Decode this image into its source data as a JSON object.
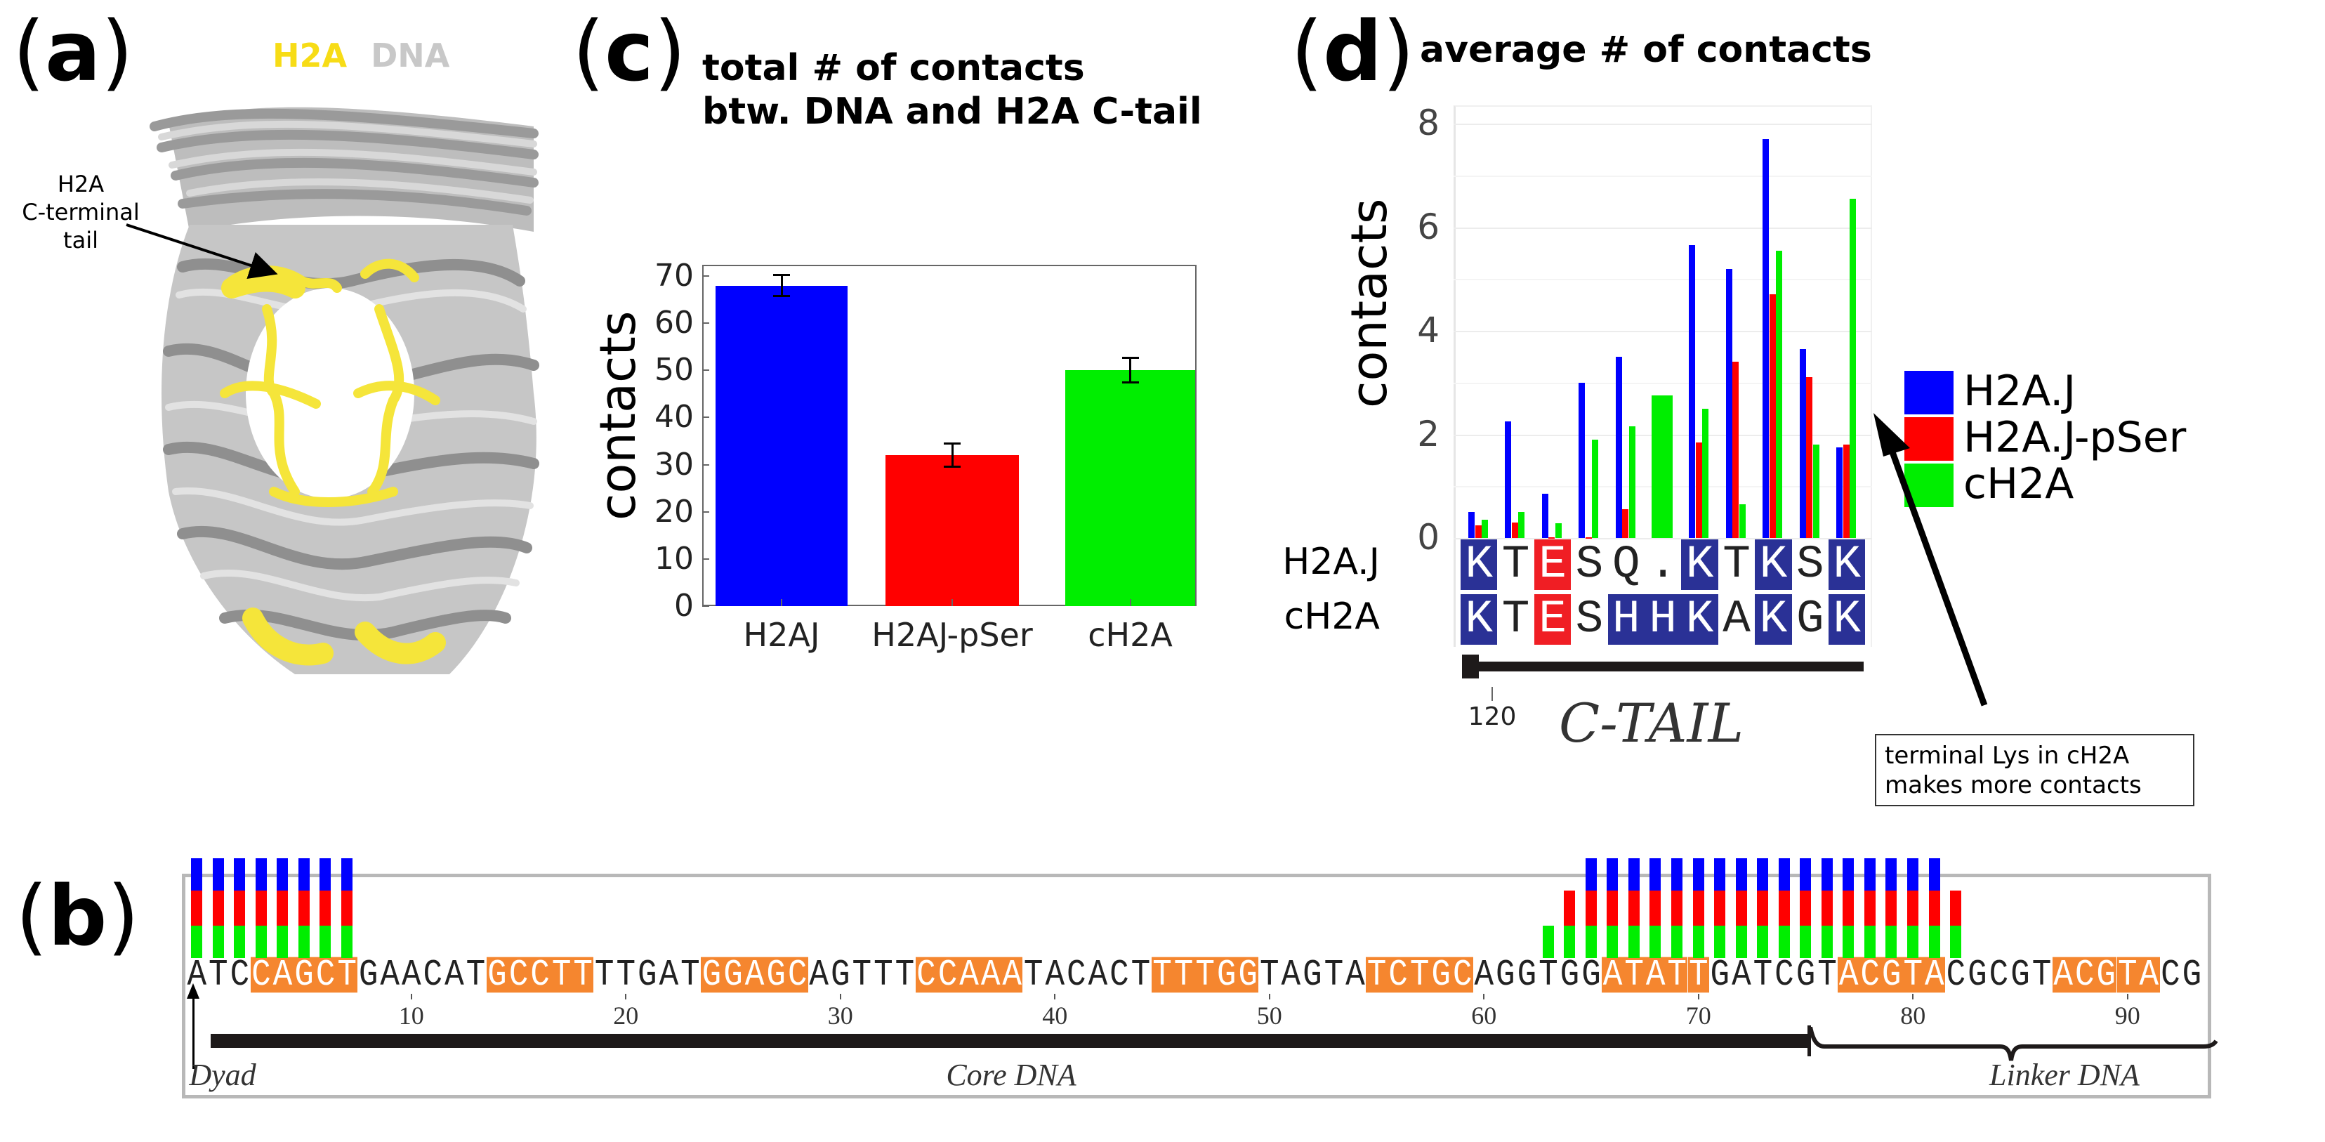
{
  "panel_labels": {
    "a": "a",
    "b": "b",
    "c": "c",
    "d": "d"
  },
  "panel_a": {
    "legend_h2a": "H2A",
    "legend_dna": "DNA",
    "tail_label_line1": "H2A",
    "tail_label_line2": "C-terminal",
    "tail_label_line3": "tail",
    "colors": {
      "h2a": "#f5e53a",
      "dna": "#b5b5b5"
    }
  },
  "chart_data": [
    {
      "id": "c",
      "type": "bar",
      "title_line1": "total # of contacts",
      "title_line2": "btw. DNA and H2A C-tail",
      "ylabel": "contacts",
      "xlabel": "",
      "categories": [
        "H2AJ",
        "H2AJ-pSer",
        "cH2A"
      ],
      "values": [
        68,
        32,
        50
      ],
      "errors": [
        2.3,
        2.5,
        2.6
      ],
      "colors": [
        "#0000ff",
        "#ff0000",
        "#00ee00"
      ],
      "ylim": [
        0,
        72.4
      ],
      "yticks": [
        "0",
        "10",
        "20",
        "30",
        "40",
        "50",
        "60",
        "70"
      ]
    },
    {
      "id": "d",
      "type": "bar",
      "title": "average # of contacts",
      "ylabel": "contacts",
      "ylim": [
        0,
        8.2
      ],
      "yticks": [
        "0",
        "2",
        "4",
        "6",
        "8"
      ],
      "series": [
        {
          "name": "H2A.J",
          "color": "#0000ff",
          "values": [
            0.5,
            2.25,
            0.85,
            3.0,
            3.5,
            0,
            5.65,
            5.2,
            7.7,
            3.65,
            1.75
          ]
        },
        {
          "name": "H2A.J-pSer",
          "color": "#ff0000",
          "values": [
            0.25,
            0.3,
            0.02,
            0.02,
            0.55,
            0,
            1.85,
            3.4,
            4.7,
            3.1,
            1.8
          ]
        },
        {
          "name": "cH2A",
          "color": "#00ee00",
          "values": [
            0.35,
            0.5,
            0.28,
            1.9,
            2.15,
            2.75,
            2.5,
            0.65,
            5.55,
            1.8,
            6.55
          ]
        }
      ],
      "alignment": {
        "rows": [
          {
            "name": "H2A.J",
            "residues": [
              "K",
              "T",
              "E",
              "S",
              "Q",
              ".",
              "K",
              "T",
              "K",
              "S",
              "K"
            ],
            "highlight": [
              "b",
              "",
              "r",
              "",
              "",
              "",
              "b",
              "",
              "b",
              "",
              "b"
            ]
          },
          {
            "name": "cH2A",
            "residues": [
              "K",
              "T",
              "E",
              "S",
              "H",
              "H",
              "K",
              "A",
              "K",
              "G",
              "K"
            ],
            "highlight": [
              "b",
              "",
              "r",
              "",
              "b",
              "b",
              "b",
              "",
              "b",
              "",
              "b"
            ]
          }
        ],
        "position_tick": "120",
        "domain_label": "C-TAIL"
      },
      "legend_placement": "right",
      "annotation": {
        "line1": "terminal Lys in cH2A",
        "line2": "makes more contacts"
      }
    },
    {
      "id": "b",
      "type": "table",
      "sequence": "ATCCAGCTGAACATGCCTTTTGATGGAGCAGTTTCCAAATACACTTTTGGTAGTATCTGCAGGTGGATATTGATCGTACGTACGCGTACGTACG",
      "highlight_ranges": [
        [
          3,
          7
        ],
        [
          14,
          18
        ],
        [
          24,
          28
        ],
        [
          34,
          38
        ],
        [
          45,
          49
        ],
        [
          55,
          59
        ],
        [
          66,
          70
        ],
        [
          77,
          81
        ],
        [
          87,
          91
        ]
      ],
      "position_ticks": [
        "10",
        "20",
        "30",
        "40",
        "50",
        "60",
        "70",
        "80",
        "90"
      ],
      "contacts": {
        "H2A.J": [
          [
            0,
            7
          ],
          [
            65,
            81
          ]
        ],
        "H2A.J-pSer": [
          [
            0,
            7
          ],
          [
            64,
            82
          ]
        ],
        "cH2A": [
          [
            0,
            7
          ],
          [
            63,
            82
          ]
        ]
      },
      "series_colors": {
        "H2A.J": "#0000ff",
        "H2A.J-pSer": "#ff0000",
        "cH2A": "#00ee00"
      },
      "labels": {
        "dyad": "Dyad",
        "core": "Core DNA",
        "linker": "Linker DNA"
      }
    }
  ]
}
